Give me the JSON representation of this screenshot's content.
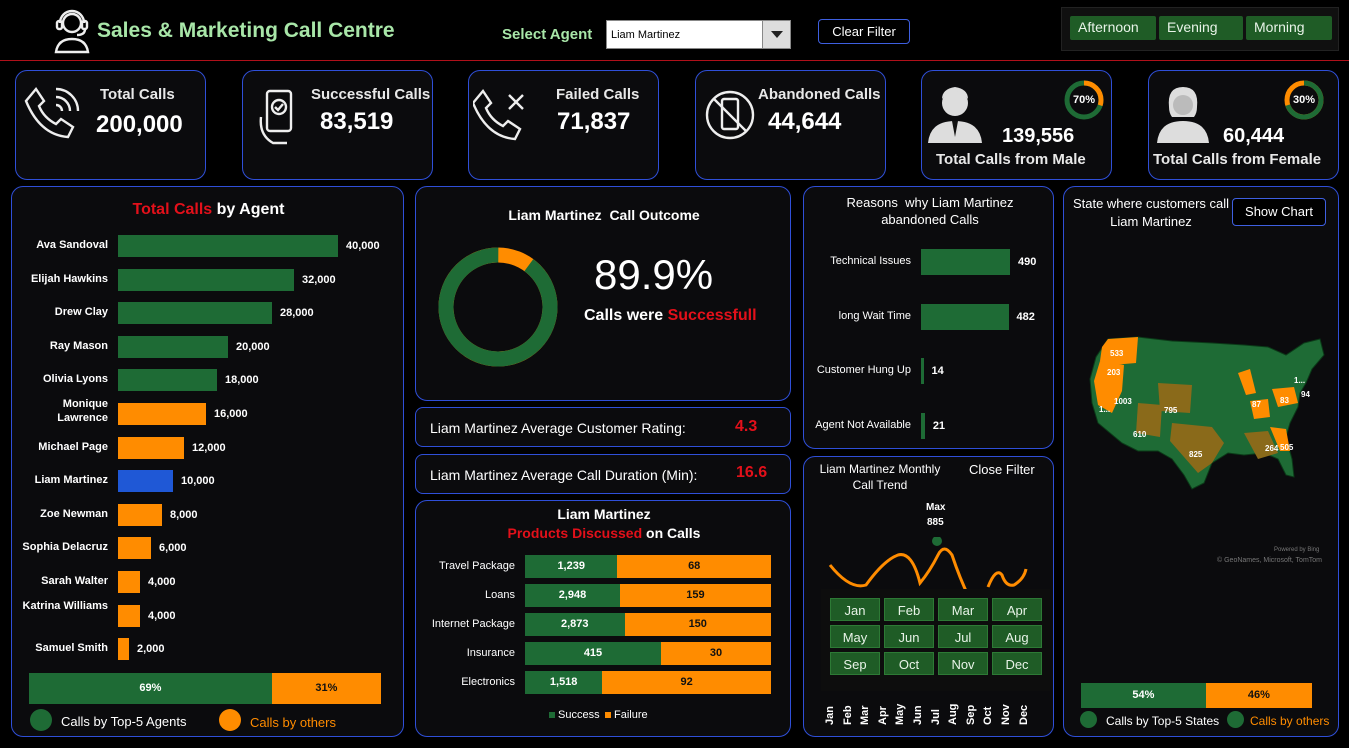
{
  "header": {
    "title": "Sales & Marketing Call Centre",
    "select_agent_label": "Select Agent",
    "selected_agent": "Liam Martinez",
    "clear_filter": "Clear Filter",
    "time_slicers": [
      "Afternoon",
      "Evening",
      "Morning"
    ]
  },
  "kpis": {
    "total_calls": {
      "label": "Total Calls",
      "value": "200,000"
    },
    "successful_calls": {
      "label": "Successful Calls",
      "value": "83,519"
    },
    "failed_calls": {
      "label": "Failed Calls",
      "value": "71,837"
    },
    "abandoned_calls": {
      "label": "Abandoned Calls",
      "value": "44,644"
    },
    "male": {
      "label": "Total Calls from Male",
      "value": "139,556",
      "pct": "70%",
      "fraction": 0.7
    },
    "female": {
      "label": "Total Calls from Female",
      "value": "60,444",
      "pct": "30%",
      "fraction": 0.3
    }
  },
  "agents_panel": {
    "title_red": "Total Calls",
    "title_rest": " by Agent",
    "agents": [
      {
        "name": "Ava Sandoval",
        "value": 40000,
        "label": "40,000",
        "color": "#1e6b35"
      },
      {
        "name": "Elijah Hawkins",
        "value": 32000,
        "label": "32,000",
        "color": "#1e6b35"
      },
      {
        "name": "Drew Clay",
        "value": 28000,
        "label": "28,000",
        "color": "#1e6b35"
      },
      {
        "name": "Ray Mason",
        "value": 20000,
        "label": "20,000",
        "color": "#1e6b35"
      },
      {
        "name": "Olivia Lyons",
        "value": 18000,
        "label": "18,000",
        "color": "#1e6b35"
      },
      {
        "name": "Monique Lawrence",
        "value": 16000,
        "label": "16,000",
        "color": "#ff8c00"
      },
      {
        "name": "Michael Page",
        "value": 12000,
        "label": "12,000",
        "color": "#ff8c00"
      },
      {
        "name": "Liam Martinez",
        "value": 10000,
        "label": "10,000",
        "color": "#1f58d6"
      },
      {
        "name": "Zoe Newman",
        "value": 8000,
        "label": "8,000",
        "color": "#ff8c00"
      },
      {
        "name": "Sophia Delacruz",
        "value": 6000,
        "label": "6,000",
        "color": "#ff8c00"
      },
      {
        "name": "Sarah Walter",
        "value": 4000,
        "label": "4,000",
        "color": "#ff8c00"
      },
      {
        "name": "Katrina Williams",
        "value": 4000,
        "label": "4,000",
        "color": "#ff8c00"
      },
      {
        "name": "Samuel Smith",
        "value": 2000,
        "label": "2,000",
        "color": "#ff8c00"
      }
    ],
    "split": {
      "top5": 0.69,
      "top5_label": "69%",
      "others_label": "31%"
    },
    "legend_top5": "Calls by Top-5 Agents",
    "legend_others": "Calls by others"
  },
  "outcome": {
    "title": "Liam Martinez  Call Outcome",
    "pct": "89.9%",
    "fraction": 0.899,
    "caption_prefix": "Calls were ",
    "caption_red": "Successfull"
  },
  "rating": {
    "label": "Liam Martinez Average Customer Rating:",
    "value": "4.3"
  },
  "duration": {
    "label": "Liam Martinez Average Call Duration (Min):",
    "value": "16.6"
  },
  "products": {
    "title": "Liam Martinez",
    "subtitle_red": "Products Discussed",
    "subtitle_rest": " on Calls",
    "rows": [
      {
        "name": "Travel Package",
        "success": 1239,
        "s_label": "1,239",
        "failure": 68,
        "f_label": "68"
      },
      {
        "name": "Loans",
        "success": 2948,
        "s_label": "2,948",
        "failure": 159,
        "f_label": "159"
      },
      {
        "name": "Internet Package",
        "success": 2873,
        "s_label": "2,873",
        "failure": 150,
        "f_label": "150"
      },
      {
        "name": "Insurance",
        "success": 415,
        "s_label": "415",
        "failure": 30,
        "f_label": "30"
      },
      {
        "name": "Electronics",
        "success": 1518,
        "s_label": "1,518",
        "failure": 92,
        "f_label": "92"
      }
    ],
    "legend_success": "Success",
    "legend_failure": "Failure"
  },
  "reasons": {
    "title": "Reasons  why Liam Martinez abandoned Calls",
    "rows": [
      {
        "name": "Technical Issues",
        "value": 490,
        "label": "490"
      },
      {
        "name": "long Wait Time",
        "value": 482,
        "label": "482"
      },
      {
        "name": "Customer Hung Up",
        "value": 14,
        "label": "14"
      },
      {
        "name": "Agent Not Available",
        "value": 21,
        "label": "21"
      }
    ]
  },
  "trend": {
    "title": "Liam Martinez Monthly Call Trend",
    "close_filter": "Close Filter",
    "max_label": "Max",
    "max_value": "885",
    "months": [
      "Jan",
      "Feb",
      "Mar",
      "Apr",
      "May",
      "Jun",
      "Jul",
      "Aug",
      "Sep",
      "Oct",
      "Nov",
      "Dec"
    ]
  },
  "map": {
    "title": "State where customers call Liam Martinez",
    "show_chart": "Show Chart",
    "labels": [
      "533",
      "203",
      "1...",
      "1003",
      "795",
      "610",
      "825",
      "87",
      "83",
      "94",
      "1...",
      "505",
      "264"
    ],
    "credit_line1": "Powered by Bing",
    "credit_line2": "© GeoNames, Microsoft, TomTom",
    "split": {
      "top5": 0.54,
      "top5_label": "54%",
      "others_label": "46%"
    },
    "legend_top5": "Calls by Top-5 States",
    "legend_others": "Calls by others"
  },
  "colors": {
    "green": "#1e6b35",
    "orange": "#ff8c00",
    "blue": "#1f58d6",
    "red": "#e3101a",
    "border": "#2f4fd8"
  }
}
